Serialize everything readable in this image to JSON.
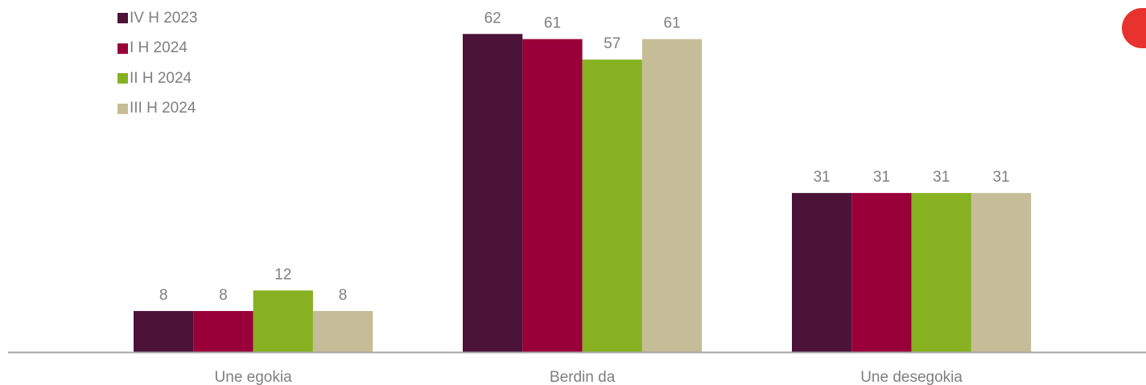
{
  "chart_data": {
    "type": "bar",
    "categories": [
      "Une egokia",
      "Berdin da",
      "Une desegokia"
    ],
    "series": [
      {
        "name": "IV H 2023",
        "values": [
          8,
          62,
          31
        ],
        "color": "#4c1339"
      },
      {
        "name": "I H 2024",
        "values": [
          8,
          61,
          31
        ],
        "color": "#990039"
      },
      {
        "name": "II H 2024",
        "values": [
          12,
          57,
          31
        ],
        "color": "#87b121"
      },
      {
        "name": "III H 2024",
        "values": [
          8,
          61,
          31
        ],
        "color": "#c5bd97"
      }
    ],
    "data_labels": [
      [
        8,
        62,
        31
      ],
      [
        8,
        61,
        31
      ],
      [
        12,
        57,
        31
      ],
      [
        8,
        61,
        31
      ]
    ],
    "title": "",
    "xlabel": "",
    "ylabel": "",
    "ylim": [
      0,
      66
    ],
    "grid": false,
    "legend_position": "top-left",
    "label_color": "#7f7f7f",
    "axis_color": "#a6a6a6",
    "badge_color": "#e8322d"
  }
}
